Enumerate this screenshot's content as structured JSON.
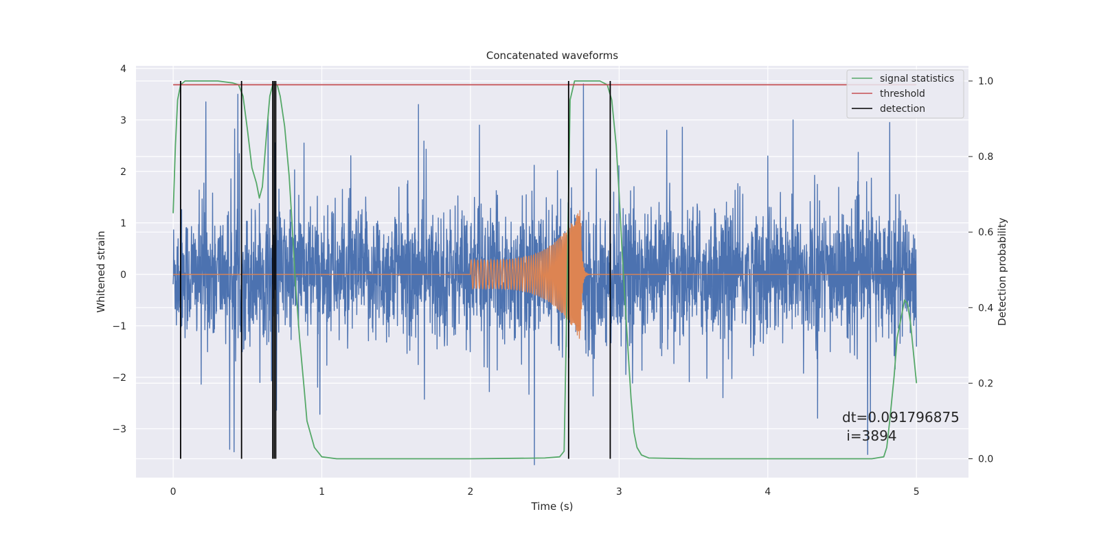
{
  "chart_data": {
    "type": "line",
    "title": "Concatenated waveforms",
    "xlabel": "Time (s)",
    "ylabel": "Whitened strain",
    "ylabel_right": "Detection probability",
    "xlim": [
      -0.25,
      5.35
    ],
    "ylim": [
      -3.95,
      4.05
    ],
    "ylim_right": [
      -0.05,
      1.04
    ],
    "x_ticks": [
      0,
      1,
      2,
      3,
      4,
      5
    ],
    "y_ticks": [
      -3,
      -2,
      -1,
      0,
      1,
      2,
      3,
      4
    ],
    "y_right_ticks": [
      0.0,
      0.2,
      0.4,
      0.6,
      0.8,
      1.0
    ],
    "grid": true,
    "legend_position": "top-right",
    "annotation": [
      "dt=0.091796875",
      " i=3894"
    ],
    "series": [
      {
        "name": "",
        "axis": "left",
        "color": "#4c72b0",
        "kind": "noise",
        "x_range": [
          0,
          5
        ],
        "envelope": [
          [
            0.0,
            2.7
          ],
          [
            0.2,
            3.3
          ],
          [
            0.5,
            3.1
          ],
          [
            1.0,
            2.3
          ],
          [
            1.5,
            2.6
          ],
          [
            2.0,
            2.2
          ],
          [
            2.5,
            2.5
          ],
          [
            3.0,
            2.4
          ],
          [
            3.5,
            2.4
          ],
          [
            4.0,
            2.5
          ],
          [
            4.5,
            2.8
          ],
          [
            5.0,
            2.4
          ]
        ],
        "peaks": [
          [
            0.22,
            3.35
          ],
          [
            0.38,
            -3.4
          ],
          [
            2.43,
            -3.7
          ],
          [
            2.76,
            3.7
          ],
          [
            0.88,
            2.55
          ],
          [
            1.65,
            3.3
          ],
          [
            2.06,
            2.9
          ],
          [
            4.17,
            3.0
          ],
          [
            4.82,
            2.95
          ],
          [
            3.32,
            2.8
          ]
        ]
      },
      {
        "name": "",
        "axis": "left",
        "color": "#dd8452",
        "kind": "chirp",
        "x_range": [
          0,
          5
        ],
        "chirp": {
          "start": 2.0,
          "peak": 2.74,
          "end": 2.8,
          "amp_start": 0.28,
          "amp_peak": 1.3,
          "freq_start": 45,
          "freq_peak": 150
        }
      },
      {
        "name": "signal statistics",
        "axis": "right",
        "color": "#55a868",
        "x": [
          0.0,
          0.015,
          0.03,
          0.05,
          0.08,
          0.12,
          0.2,
          0.3,
          0.4,
          0.44,
          0.47,
          0.5,
          0.53,
          0.56,
          0.58,
          0.6,
          0.63,
          0.65,
          0.67,
          0.7,
          0.72,
          0.75,
          0.78,
          0.8,
          0.82,
          0.85,
          0.88,
          0.9,
          0.95,
          1.0,
          1.1,
          1.5,
          2.0,
          2.5,
          2.6,
          2.63,
          2.65,
          2.67,
          2.7,
          2.75,
          2.8,
          2.87,
          2.92,
          2.95,
          2.98,
          3.0,
          3.02,
          3.05,
          3.08,
          3.1,
          3.12,
          3.15,
          3.2,
          3.5,
          4.0,
          4.5,
          4.7,
          4.78,
          4.8,
          4.82,
          4.85,
          4.87,
          4.9,
          4.92,
          4.94,
          4.96,
          4.98,
          5.0
        ],
        "y": [
          0.65,
          0.83,
          0.95,
          0.99,
          1.0,
          1.0,
          1.0,
          1.0,
          0.995,
          0.99,
          0.96,
          0.87,
          0.77,
          0.73,
          0.69,
          0.72,
          0.87,
          0.96,
          0.99,
          0.99,
          0.96,
          0.88,
          0.75,
          0.62,
          0.48,
          0.32,
          0.19,
          0.1,
          0.03,
          0.005,
          0.0,
          0.0,
          0.0,
          0.002,
          0.005,
          0.02,
          0.45,
          0.95,
          1.0,
          1.0,
          1.0,
          1.0,
          0.99,
          0.95,
          0.83,
          0.7,
          0.55,
          0.35,
          0.16,
          0.07,
          0.03,
          0.01,
          0.002,
          0.0,
          0.0,
          0.0,
          0.0,
          0.005,
          0.03,
          0.1,
          0.22,
          0.32,
          0.38,
          0.42,
          0.41,
          0.36,
          0.28,
          0.2
        ]
      },
      {
        "name": "threshold",
        "axis": "right",
        "color": "#c44e52",
        "x": [
          0,
          5
        ],
        "y": [
          0.99,
          0.99
        ]
      },
      {
        "name": "detection",
        "axis": "right",
        "color": "#000000",
        "kind": "vlines",
        "x": [
          0.05,
          0.46,
          0.67,
          0.68,
          0.69,
          2.66,
          2.94
        ],
        "y_range": [
          0.0,
          1.0
        ]
      }
    ]
  }
}
